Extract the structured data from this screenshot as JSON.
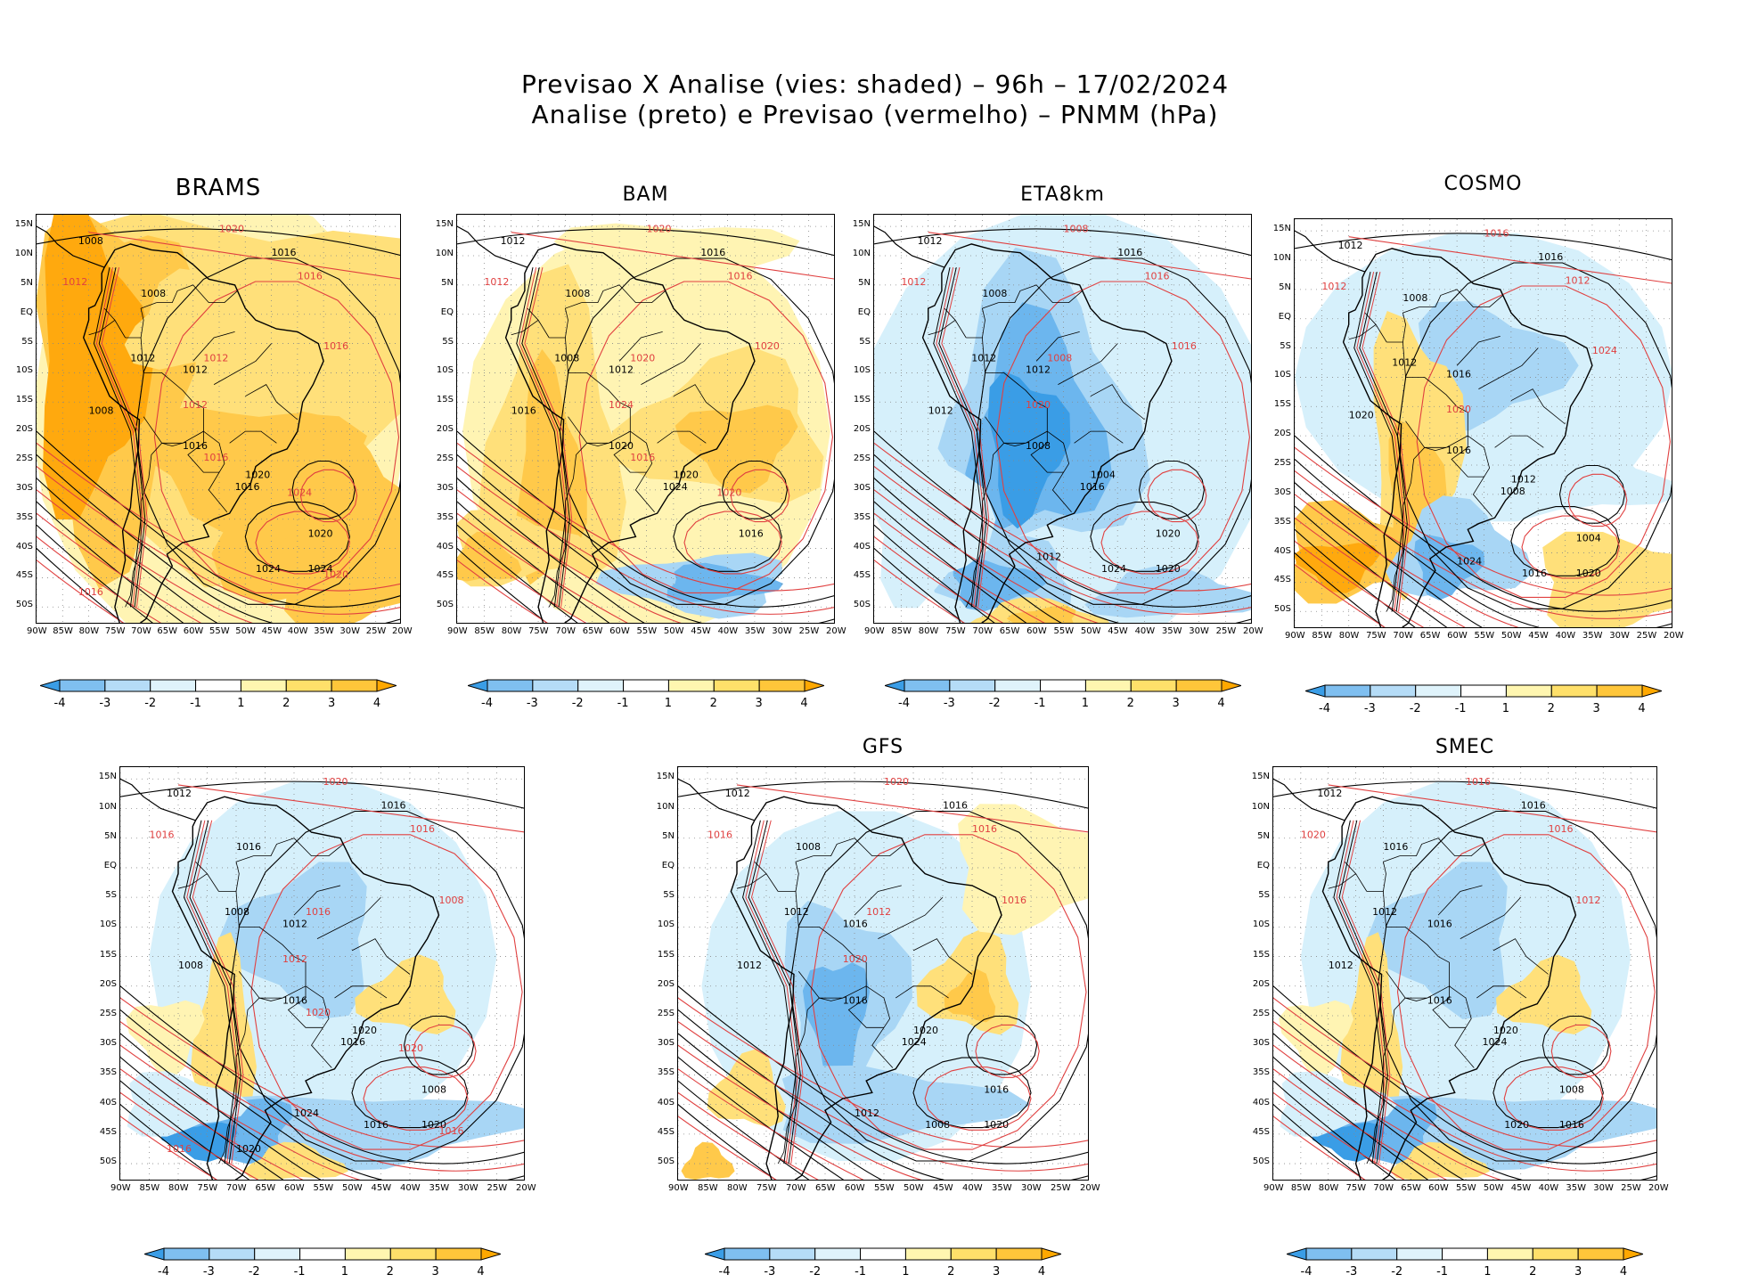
{
  "title_line1": "Previsao X Analise (vies: shaded) – 96h – 17/02/2024",
  "title_line2": "Analise (preto) e Previsao (vermelho) – PNMM (hPa)",
  "lat_labels": [
    "15N",
    "10N",
    "5N",
    "EQ",
    "5S",
    "10S",
    "15S",
    "20S",
    "25S",
    "30S",
    "35S",
    "40S",
    "45S",
    "50S"
  ],
  "lon_labels": [
    "90W",
    "85W",
    "80W",
    "75W",
    "70W",
    "65W",
    "60W",
    "55W",
    "50W",
    "45W",
    "40W",
    "35W",
    "30W",
    "25W",
    "20W"
  ],
  "colorbar": {
    "labels": [
      "-4",
      "-3",
      "-2",
      "-1",
      "1",
      "2",
      "3",
      "4"
    ],
    "colors": [
      "#3a9de6",
      "#7fbff0",
      "#b5dcf7",
      "#dff3fb",
      "#ffffff",
      "#fff6b0",
      "#ffe06a",
      "#ffc63a",
      "#ffa800"
    ]
  },
  "bias_colors": {
    "m4": "#3a9de6",
    "m3": "#6cb6ee",
    "m2": "#a8d6f5",
    "m1": "#d6f0fb",
    "p1": "#fff4b3",
    "p2": "#ffe07a",
    "p3": "#ffc94a",
    "p4": "#ffa90e"
  },
  "line_colors": {
    "analysis": "#000000",
    "forecast": "#e04040",
    "coast": "#000000"
  },
  "panels": [
    {
      "id": "brams",
      "title": "BRAMS",
      "bias": "positive-strong",
      "labels_black": [
        "1008",
        "1016",
        "1008",
        "1012",
        "1012",
        "1008",
        "1016",
        "1020",
        "1016",
        "1020",
        "1024",
        "1024"
      ],
      "labels_red": [
        "1020",
        "1016",
        "1012",
        "1016",
        "1012",
        "1012",
        "1016",
        "1024",
        "1020",
        "1016"
      ]
    },
    {
      "id": "bam",
      "title": "BAM",
      "bias": "positive-south-negative",
      "labels_black": [
        "1012",
        "1016",
        "1008",
        "1008",
        "1012",
        "1016",
        "1020",
        "1020",
        "1024",
        "1016"
      ],
      "labels_red": [
        "1020",
        "1016",
        "1012",
        "1020",
        "1024",
        "1020",
        "1016",
        "1020"
      ]
    },
    {
      "id": "eta8km",
      "title": "ETA8km",
      "bias": "negative",
      "labels_black": [
        "1012",
        "1016",
        "1008",
        "1012",
        "1012",
        "1012",
        "1008",
        "1004",
        "1016",
        "1020",
        "1024",
        "1020",
        "1012"
      ],
      "labels_red": [
        "1008",
        "1016",
        "1012",
        "1016",
        "1020",
        "1008"
      ]
    },
    {
      "id": "cosmo",
      "title": "COSMO",
      "bias": "mixed",
      "labels_black": [
        "1012",
        "1016",
        "1008",
        "1012",
        "1016",
        "1020",
        "1016",
        "1012",
        "1008",
        "1004",
        "1016",
        "1020",
        "1024"
      ],
      "labels_red": [
        "1016",
        "1012",
        "1012",
        "1024",
        "1020"
      ]
    },
    {
      "id": "untitled",
      "title": "",
      "bias": "negative-light",
      "labels_black": [
        "1012",
        "1016",
        "1016",
        "1008",
        "1012",
        "1008",
        "1016",
        "1020",
        "1016",
        "1008",
        "1016",
        "1020",
        "1024",
        "1020"
      ],
      "labels_red": [
        "1020",
        "1016",
        "1016",
        "1008",
        "1012",
        "1016",
        "1020",
        "1020",
        "1016",
        "1016"
      ]
    },
    {
      "id": "gfs",
      "title": "GFS",
      "bias": "negative-moderate",
      "labels_black": [
        "1012",
        "1016",
        "1008",
        "1012",
        "1016",
        "1012",
        "1016",
        "1020",
        "1024",
        "1016",
        "1008",
        "1020",
        "1012"
      ],
      "labels_red": [
        "1020",
        "1016",
        "1016",
        "1016",
        "1020",
        "1012"
      ]
    },
    {
      "id": "smec",
      "title": "SMEC",
      "bias": "negative-light",
      "labels_black": [
        "1012",
        "1016",
        "1016",
        "1012",
        "1016",
        "1012",
        "1016",
        "1020",
        "1024",
        "1008",
        "1020",
        "1016"
      ],
      "labels_red": [
        "1016",
        "1016",
        "1020",
        "1012"
      ]
    }
  ]
}
